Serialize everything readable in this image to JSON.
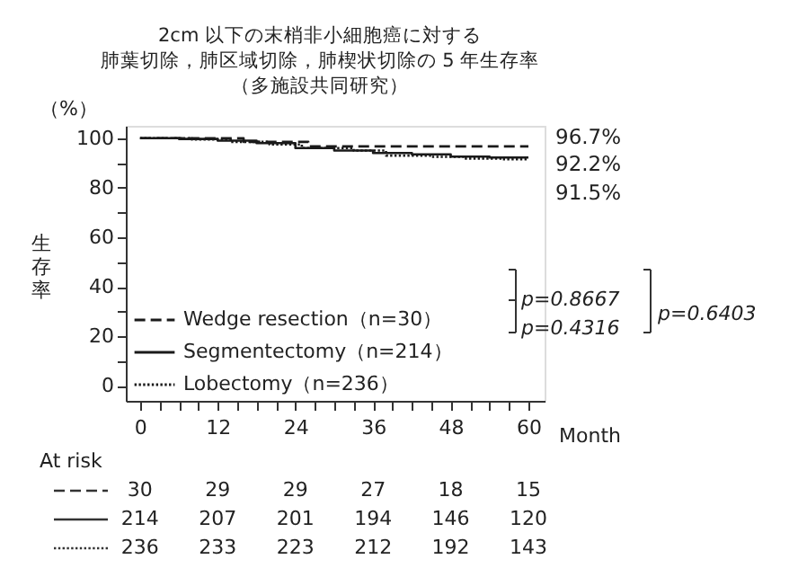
{
  "chart_data": {
    "type": "step",
    "title": "2cm 以下の末梢非小細胞癌に対する",
    "subtitle": "肺葉切除，肺区域切除，肺楔状切除の 5 年生存率",
    "xlabel": "Month",
    "ylabel": "生存率",
    "xlim": [
      -2.2,
      62.5
    ],
    "ylim": [
      -6,
      105
    ],
    "xticks": [
      0,
      {
        "value": 3,
        "label": null
      },
      {
        "value": 6,
        "label": null
      },
      {
        "value": 9,
        "label": null
      },
      12,
      {
        "value": 15,
        "label": null
      },
      {
        "value": 18,
        "label": null
      },
      {
        "value": 21,
        "label": null
      },
      24,
      {
        "value": 27,
        "label": null
      },
      {
        "value": 30,
        "label": null
      },
      {
        "value": 33,
        "label": null
      },
      36,
      {
        "value": 39,
        "label": null
      },
      {
        "value": 42,
        "label": null
      },
      {
        "value": 45,
        "label": null
      },
      48,
      {
        "value": 51,
        "label": null
      },
      {
        "value": 54,
        "label": null
      },
      {
        "value": 57,
        "label": null
      },
      60
    ],
    "yticks": [
      0,
      {
        "value": 10,
        "label": null
      },
      20,
      {
        "value": 30,
        "label": null
      },
      40,
      {
        "value": 50,
        "label": null
      },
      60,
      {
        "value": 70,
        "label": null
      },
      80,
      {
        "value": 90,
        "label": null
      },
      100
    ],
    "grid": false,
    "legend": "bottom left",
    "series": [
      {
        "name": "Wedge resection（n=30）",
        "color": "#1a1a1a",
        "line_style": "dashed",
        "x": [
          0,
          16,
          26,
          60
        ],
        "values": [
          100,
          98.5,
          96.7,
          96.7
        ]
      },
      {
        "name": "Segmentectomy（n=214）",
        "color": "#1a1a1a",
        "line_style": "solid",
        "x": [
          0,
          6,
          12,
          18,
          24,
          30,
          36,
          42,
          48,
          54,
          60
        ],
        "values": [
          100,
          99.7,
          99,
          98,
          96,
          95,
          94,
          93.5,
          92.6,
          92.2,
          92.2
        ]
      },
      {
        "name": "Lobectomy（n=236）",
        "color": "#1a1a1a",
        "line_style": "dotted",
        "x": [
          0,
          8,
          14,
          20,
          25,
          33,
          38,
          45,
          50,
          56,
          60
        ],
        "values": [
          100,
          99.5,
          98.5,
          97.5,
          96,
          95,
          93,
          92.5,
          91.8,
          91.5,
          91.5
        ]
      }
    ],
    "annotations": [
      "（多施設共同研究）",
      "（%）",
      "96.7%",
      "92.2%",
      "91.5%",
      "p=0.8667",
      "p=0.4316",
      "p=0.6403",
      "At risk",
      "30",
      "29",
      "29",
      "27",
      "18",
      "15",
      "214",
      "207",
      "201",
      "194",
      "146",
      "120",
      "236",
      "233",
      "223",
      "212",
      "192",
      "143"
    ]
  }
}
